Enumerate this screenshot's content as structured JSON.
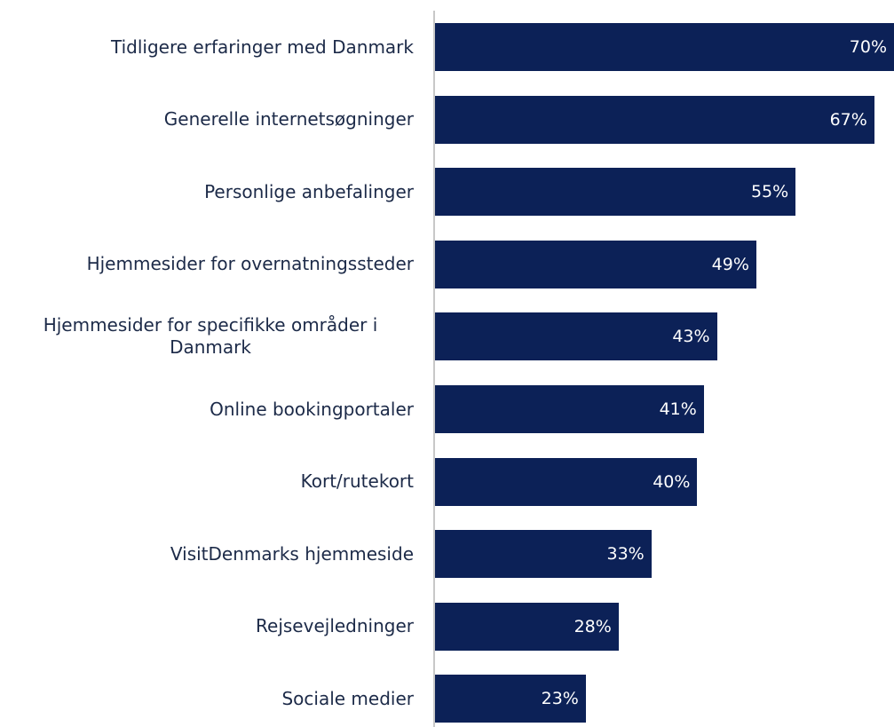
{
  "chart_data": {
    "type": "bar",
    "orientation": "horizontal",
    "categories": [
      "Tidligere erfaringer med Danmark",
      "Generelle internetsøgninger",
      "Personlige anbefalinger",
      "Hjemmesider for overnatningssteder",
      "Hjemmesider for specifikke områder i Danmark",
      "Online bookingportaler",
      "Kort/rutekort",
      "VisitDenmarks hjemmeside",
      "Rejsevejledninger",
      "Sociale medier"
    ],
    "values": [
      70,
      67,
      55,
      49,
      43,
      41,
      40,
      33,
      28,
      23
    ],
    "value_labels": [
      "70%",
      "67%",
      "55%",
      "49%",
      "43%",
      "41%",
      "40%",
      "33%",
      "28%",
      "23%"
    ],
    "color": "#0c2157",
    "xlim": [
      0,
      70
    ]
  }
}
